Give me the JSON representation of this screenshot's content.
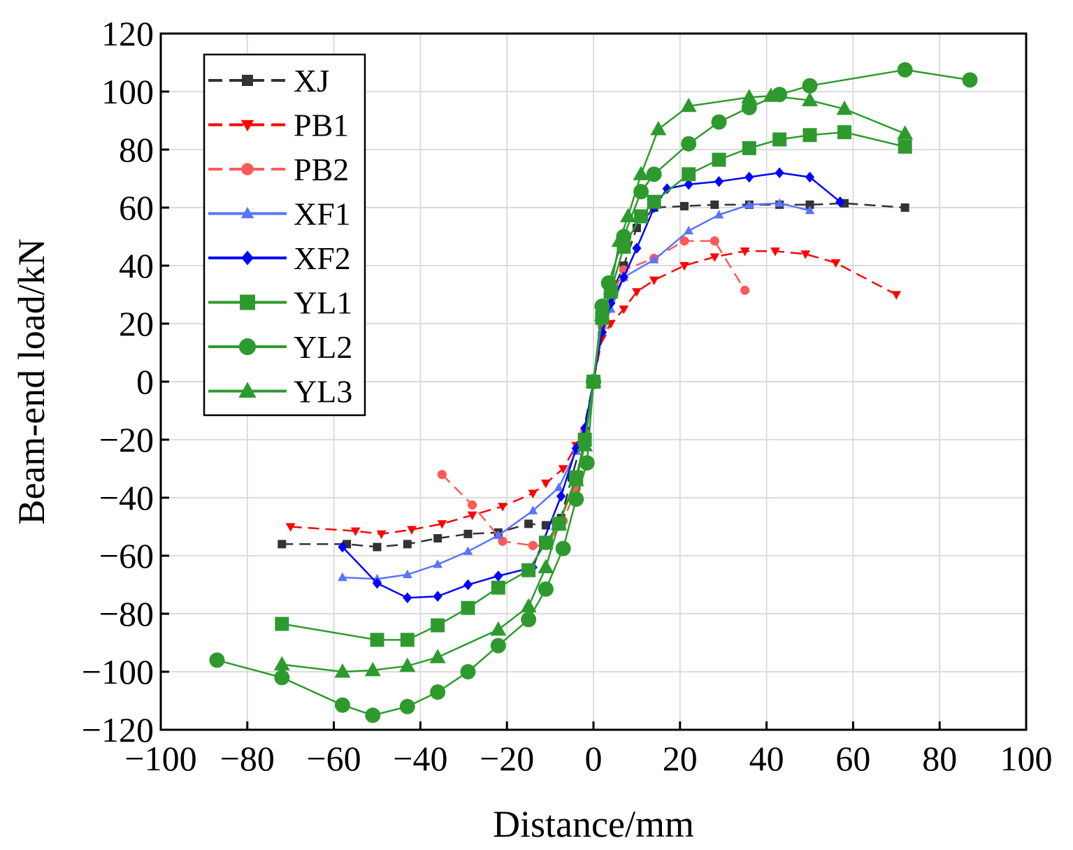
{
  "chart_data": {
    "type": "line",
    "title": "",
    "xlabel": "Distance/mm",
    "ylabel": "Beam-end load/kN",
    "xlim": [
      -100,
      100
    ],
    "ylim": [
      -120,
      120
    ],
    "x_ticks": [
      -100,
      -80,
      -60,
      -40,
      -20,
      0,
      20,
      40,
      60,
      80,
      100
    ],
    "y_ticks": [
      -120,
      -100,
      -80,
      -60,
      -40,
      -20,
      0,
      20,
      40,
      60,
      80,
      100,
      120
    ],
    "x_tick_labels": [
      "−100",
      "−80",
      "−60",
      "−40",
      "−20",
      "0",
      "20",
      "40",
      "60",
      "80",
      "100"
    ],
    "y_tick_labels": [
      "−120",
      "−100",
      "−80",
      "−60",
      "−40",
      "−20",
      "0",
      "20",
      "40",
      "60",
      "80",
      "100",
      "120"
    ],
    "grid": true,
    "legend_position": "top-left",
    "series": [
      {
        "name": "XJ",
        "color": "#333333",
        "dash": "dashed",
        "marker": "square",
        "marker_size": "small",
        "x": [
          -72,
          -57,
          -50,
          -43,
          -36,
          -29,
          -22,
          -15,
          -11,
          -7.5,
          -5,
          -3,
          0,
          2,
          4,
          7,
          10,
          14,
          21,
          28,
          36,
          43,
          50,
          58,
          72
        ],
        "y": [
          -56,
          -56,
          -57,
          -56,
          -54,
          -52.5,
          -52,
          -49,
          -49.5,
          -47,
          -33,
          -22,
          0,
          22,
          30,
          40,
          53,
          60,
          60.5,
          61,
          61,
          61,
          61,
          61.5,
          60
        ]
      },
      {
        "name": "PB1",
        "color": "#ff0000",
        "dash": "dashed",
        "marker": "triangle-down",
        "marker_size": "small",
        "x": [
          -70,
          -55,
          -49,
          -42,
          -35,
          -28,
          -21,
          -14,
          -11,
          -7,
          -4,
          -2,
          0,
          2,
          4,
          7,
          10,
          14,
          21,
          28,
          35,
          42,
          49,
          56,
          70
        ],
        "y": [
          -50,
          -51.5,
          -52.5,
          -51,
          -49,
          -46,
          -43,
          -38.5,
          -35,
          -30,
          -22,
          -18,
          0,
          15,
          20,
          25,
          31,
          35,
          40,
          43,
          45,
          45,
          44,
          41,
          30
        ]
      },
      {
        "name": "PB2",
        "color": "#ff5a5a",
        "dash": "dashed",
        "marker": "circle",
        "marker_size": "small",
        "x": [
          -35,
          -28,
          -21,
          -14,
          -11,
          -7,
          -4,
          -2,
          0,
          2,
          4,
          7,
          14,
          21,
          28,
          35
        ],
        "y": [
          -32,
          -42.5,
          -55,
          -56.5,
          -56.5,
          -48,
          -37,
          -17,
          0,
          19,
          28,
          38.5,
          42.5,
          48.5,
          48.5,
          31.5
        ]
      },
      {
        "name": "XF1",
        "color": "#5a74ff",
        "dash": "solid",
        "marker": "triangle-up",
        "marker_size": "small",
        "x": [
          -58,
          -50,
          -43,
          -36,
          -29,
          -22,
          -14,
          -8,
          -4,
          -2,
          0,
          2,
          4,
          7,
          14,
          22,
          29,
          36,
          43,
          50
        ],
        "y": [
          -67.5,
          -68,
          -66.5,
          -63,
          -58.5,
          -53,
          -44.5,
          -36.5,
          -24,
          -18,
          0,
          18,
          25,
          36,
          42,
          52,
          57.5,
          61,
          61.5,
          59
        ]
      },
      {
        "name": "XF2",
        "color": "#0000ff",
        "dash": "solid",
        "marker": "diamond",
        "marker_size": "small",
        "x": [
          -58,
          -50,
          -43,
          -36,
          -29,
          -22,
          -14,
          -7.5,
          -4,
          -2,
          0,
          2,
          4,
          7,
          10,
          14,
          17,
          22,
          29,
          36,
          43,
          50,
          57
        ],
        "y": [
          -57,
          -69.5,
          -74.5,
          -74,
          -70,
          -67,
          -64,
          -39.5,
          -23,
          -16,
          0,
          17,
          27,
          36,
          46,
          60,
          66.5,
          68,
          69,
          70.5,
          72,
          70.5,
          62
        ]
      },
      {
        "name": "YL1",
        "color": "#2e9a2e",
        "dash": "solid",
        "marker": "square",
        "marker_size": "large",
        "x": [
          -72,
          -50,
          -43,
          -36,
          -29,
          -22,
          -15,
          -11,
          -8,
          -4,
          -2,
          0,
          2,
          4,
          7,
          11,
          14,
          22,
          29,
          36,
          43,
          50,
          58,
          72
        ],
        "y": [
          -83.5,
          -89,
          -89,
          -84,
          -78,
          -71,
          -65,
          -55.5,
          -49,
          -33,
          -20,
          0,
          22,
          31,
          46.5,
          57,
          62,
          71.5,
          76.5,
          80.5,
          83.5,
          85,
          86,
          81
        ]
      },
      {
        "name": "YL2",
        "color": "#2e9a2e",
        "dash": "solid",
        "marker": "circle",
        "marker_size": "large",
        "x": [
          -87,
          -72,
          -58,
          -51,
          -43,
          -36,
          -29,
          -22,
          -15,
          -11,
          -7,
          -4,
          -1.5,
          0,
          2,
          3.5,
          7,
          11,
          14,
          22,
          29,
          36,
          43,
          50,
          72,
          87
        ],
        "y": [
          -96,
          -102,
          -111.5,
          -115,
          -112,
          -107,
          -100,
          -91,
          -82,
          -71.5,
          -57.5,
          -40.5,
          -28,
          0,
          26,
          34,
          50,
          65.5,
          71.5,
          82,
          89.5,
          94.5,
          99,
          102,
          107.5,
          104
        ]
      },
      {
        "name": "YL3",
        "color": "#2e9a2e",
        "dash": "solid",
        "marker": "triangle-up",
        "marker_size": "large",
        "x": [
          -72,
          -58,
          -51,
          -43,
          -36,
          -22,
          -15,
          -11,
          -8,
          -4,
          -2,
          0,
          2,
          4,
          6,
          8,
          11,
          15,
          22,
          36,
          41,
          50,
          58,
          72
        ],
        "y": [
          -97.5,
          -100,
          -99.5,
          -98,
          -95,
          -85.5,
          -77.5,
          -64,
          -49,
          -34,
          -22,
          0,
          23,
          32,
          48.5,
          57,
          71.5,
          87,
          95,
          98,
          98.5,
          97,
          94,
          85.5
        ]
      }
    ]
  }
}
